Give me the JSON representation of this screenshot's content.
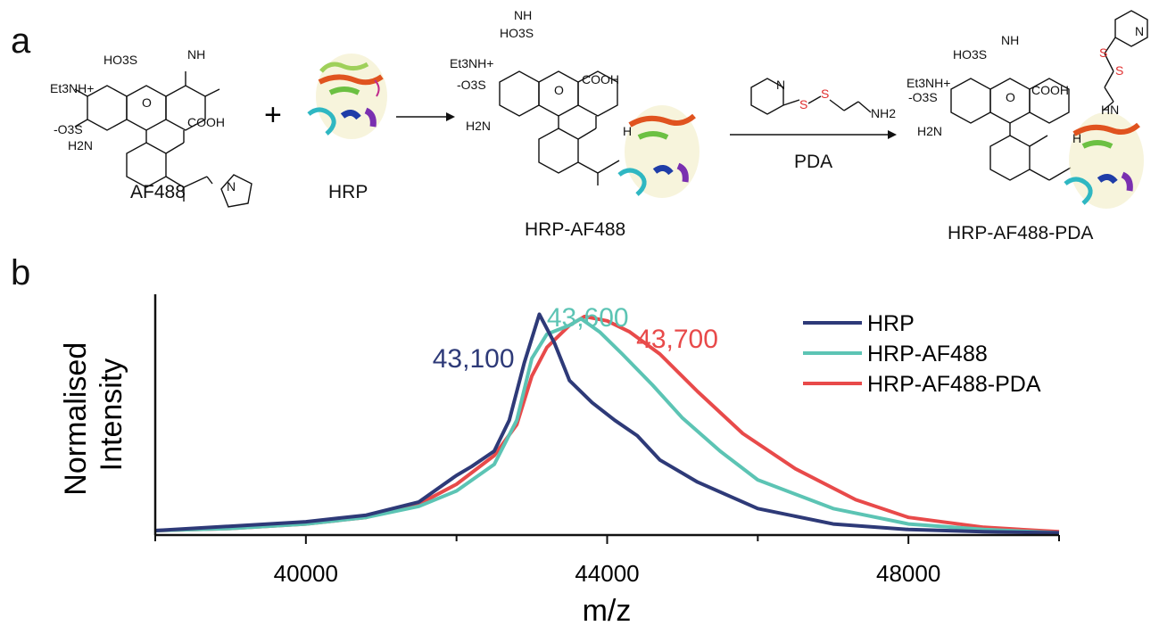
{
  "panel_a": {
    "letter": "a",
    "labels": {
      "af488": "AF488",
      "hrp": "HRP",
      "hrp_af488": "HRP-AF488",
      "pda": "PDA",
      "hrp_af488_pda": "HRP-AF488-PDA"
    },
    "chem_text": {
      "imine": "NH",
      "so3h": "HO3S",
      "et3nh": "Et3NH+",
      "so3minus": "-O3S",
      "amine": "H2N",
      "cooh": "COOH",
      "ring_o": "O",
      "ring_n": "N",
      "amide_h": "H",
      "nh2": "NH2",
      "sulfur": "S",
      "nh_link": "HN"
    }
  },
  "panel_b": {
    "letter": "b",
    "chart_data": {
      "type": "line",
      "title": "",
      "xlabel": "m/z",
      "ylabel": "Normalised Intensity",
      "xlim": [
        38000,
        50000
      ],
      "ylim": [
        0,
        1.05
      ],
      "xticks": [
        40000,
        44000,
        48000
      ],
      "grid": false,
      "legend_position": "top-right",
      "series": [
        {
          "name": "HRP",
          "color": "#2e3a78",
          "x": [
            38000,
            39000,
            40000,
            40800,
            41500,
            42000,
            42200,
            42500,
            42700,
            42900,
            43100,
            43300,
            43500,
            43800,
            44100,
            44400,
            44700,
            45200,
            46000,
            47000,
            48000,
            49000,
            50000
          ],
          "y": [
            0.02,
            0.04,
            0.06,
            0.09,
            0.15,
            0.27,
            0.31,
            0.38,
            0.52,
            0.78,
            1.0,
            0.87,
            0.7,
            0.6,
            0.52,
            0.45,
            0.34,
            0.24,
            0.12,
            0.05,
            0.025,
            0.015,
            0.01
          ]
        },
        {
          "name": "HRP-AF488",
          "color": "#5cc4b4",
          "x": [
            38000,
            39000,
            40000,
            40800,
            41500,
            42000,
            42500,
            42800,
            43000,
            43200,
            43500,
            43650,
            43900,
            44200,
            44600,
            45000,
            45500,
            46000,
            47000,
            48000,
            49000,
            50000
          ],
          "y": [
            0.02,
            0.03,
            0.05,
            0.08,
            0.13,
            0.2,
            0.32,
            0.52,
            0.8,
            0.91,
            0.95,
            0.98,
            0.92,
            0.82,
            0.68,
            0.53,
            0.38,
            0.25,
            0.12,
            0.05,
            0.025,
            0.01
          ]
        },
        {
          "name": "HRP-AF488-PDA",
          "color": "#e84a4a",
          "x": [
            38000,
            39000,
            40000,
            40800,
            41500,
            42000,
            42500,
            42800,
            43000,
            43200,
            43500,
            43700,
            44000,
            44300,
            44700,
            45200,
            45800,
            46500,
            47300,
            48000,
            49000,
            50000
          ],
          "y": [
            0.02,
            0.03,
            0.05,
            0.08,
            0.14,
            0.23,
            0.36,
            0.5,
            0.72,
            0.85,
            0.95,
            0.99,
            0.97,
            0.92,
            0.82,
            0.65,
            0.46,
            0.3,
            0.16,
            0.08,
            0.035,
            0.015
          ]
        }
      ],
      "annotations": [
        {
          "text": "43,100",
          "x": 43100,
          "color": "#2e3a78"
        },
        {
          "text": "43,600",
          "x": 43600,
          "color": "#5cc4b4"
        },
        {
          "text": "43,700",
          "x": 43700,
          "color": "#e84a4a"
        }
      ]
    }
  }
}
